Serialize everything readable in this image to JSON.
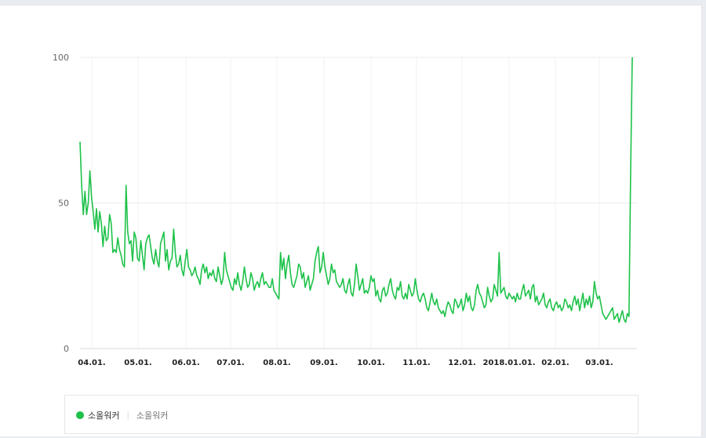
{
  "legend": {
    "series_label": "소올워커",
    "series_sublabel": "소올워커"
  },
  "chart_data": {
    "type": "line",
    "title": "",
    "xlabel": "",
    "ylabel": "",
    "ylim": [
      0,
      100
    ],
    "y_ticks": [
      0,
      50,
      100
    ],
    "x_tick_labels": [
      "04.01.",
      "05.01.",
      "06.01.",
      "07.01.",
      "08.01.",
      "09.01.",
      "10.01.",
      "11.01.",
      "12.01.",
      "2018.01.01.",
      "02.01.",
      "03.01."
    ],
    "grid": true,
    "legend_position": "bottom",
    "color": "#1ec24a",
    "series": [
      {
        "name": "소올워커",
        "x_range": [
          "2017-03-27",
          "2018-03-26"
        ],
        "frequency": "daily",
        "values": [
          71,
          56,
          46,
          54,
          46,
          50,
          61,
          52,
          47,
          41,
          48,
          40,
          47,
          43,
          35,
          42,
          37,
          38,
          46,
          43,
          33,
          34,
          33,
          38,
          34,
          32,
          29,
          28,
          56,
          40,
          36,
          37,
          30,
          40,
          38,
          31,
          30,
          37,
          32,
          27,
          36,
          38,
          39,
          35,
          31,
          29,
          34,
          30,
          28,
          36,
          38,
          40,
          30,
          34,
          27,
          30,
          31,
          41,
          33,
          28,
          29,
          32,
          27,
          25,
          30,
          34,
          28,
          27,
          25,
          26,
          28,
          25,
          24,
          22,
          27,
          29,
          26,
          28,
          24,
          26,
          25,
          27,
          24,
          23,
          28,
          25,
          22,
          24,
          33,
          27,
          25,
          23,
          21,
          20,
          24,
          22,
          26,
          22,
          20,
          23,
          28,
          24,
          21,
          22,
          26,
          24,
          20,
          22,
          23,
          21,
          24,
          26,
          22,
          23,
          22,
          21,
          21,
          24,
          20,
          19,
          18,
          17,
          33,
          27,
          31,
          24,
          29,
          32,
          26,
          22,
          21,
          23,
          25,
          29,
          28,
          24,
          26,
          21,
          23,
          25,
          20,
          22,
          24,
          30,
          33,
          35,
          26,
          28,
          33,
          28,
          25,
          22,
          24,
          29,
          26,
          27,
          23,
          22,
          21,
          22,
          24,
          20,
          19,
          22,
          24,
          19,
          18,
          22,
          29,
          25,
          20,
          22,
          24,
          19,
          20,
          19,
          21,
          25,
          23,
          24,
          18,
          20,
          17,
          16,
          20,
          21,
          18,
          19,
          22,
          24,
          20,
          18,
          17,
          21,
          20,
          23,
          18,
          17,
          19,
          17,
          22,
          20,
          18,
          19,
          24,
          20,
          17,
          16,
          18,
          19,
          17,
          14,
          13,
          16,
          19,
          16,
          15,
          17,
          14,
          13,
          12,
          13,
          11,
          14,
          16,
          15,
          13,
          12,
          17,
          16,
          14,
          15,
          17,
          13,
          15,
          19,
          16,
          18,
          14,
          13,
          15,
          20,
          22,
          19,
          18,
          16,
          14,
          15,
          21,
          18,
          16,
          17,
          22,
          20,
          18,
          33,
          19,
          20,
          21,
          18,
          17,
          19,
          18,
          17,
          18,
          16,
          19,
          17,
          17,
          20,
          22,
          18,
          19,
          20,
          17,
          21,
          22,
          16,
          18,
          15,
          16,
          17,
          19,
          15,
          14,
          16,
          17,
          14,
          13,
          15,
          16,
          14,
          15,
          13,
          14,
          17,
          16,
          14,
          15,
          13,
          16,
          18,
          15,
          17,
          13,
          16,
          19,
          14,
          17,
          15,
          18,
          14,
          16,
          23,
          19,
          17,
          18,
          15,
          12,
          11,
          10,
          11,
          12,
          13,
          14,
          10,
          11,
          12,
          9,
          11,
          13,
          10,
          9,
          12,
          11,
          60,
          100
        ]
      }
    ]
  }
}
